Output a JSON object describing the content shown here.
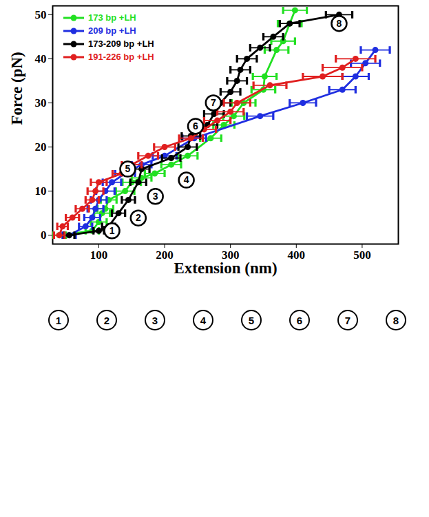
{
  "chart_data": {
    "type": "line",
    "marker": "circle",
    "legend": "upper left",
    "x_label": "Extension (nm)",
    "y_label": "Force (pN)",
    "xlim": [
      30,
      555
    ],
    "xticks": [
      100,
      200,
      300,
      400,
      500
    ],
    "ylim": [
      -2,
      52
    ],
    "yticks": [
      0,
      10,
      20,
      30,
      40,
      50
    ],
    "series": [
      {
        "name": "173 bp +LH",
        "color": "#22e022",
        "x": [
          40,
          90,
          100,
          105,
          110,
          115,
          140,
          150,
          165,
          185,
          210,
          235,
          270,
          290,
          305,
          320,
          350,
          352,
          370,
          380,
          390,
          398
        ],
        "values": [
          0,
          1,
          3,
          5,
          6,
          8,
          10,
          12,
          13,
          14,
          16,
          18,
          22,
          25,
          27,
          30,
          33,
          36,
          42,
          44,
          48,
          51
        ],
        "x_errors": [
          10,
          10,
          12,
          12,
          12,
          12,
          14,
          14,
          15,
          15,
          15,
          15,
          16,
          16,
          16,
          18,
          18,
          18,
          18,
          18,
          18,
          18
        ]
      },
      {
        "name": "209 bp +LH",
        "color": "#1f2ee0",
        "x": [
          55,
          80,
          90,
          95,
          100,
          110,
          120,
          140,
          165,
          200,
          245,
          345,
          410,
          470,
          490,
          505,
          520
        ],
        "values": [
          0,
          2,
          4,
          6,
          8,
          10,
          12,
          14,
          16,
          18,
          22,
          27,
          30,
          33,
          36,
          39,
          42
        ],
        "x_errors": [
          10,
          10,
          12,
          12,
          12,
          14,
          14,
          15,
          15,
          18,
          18,
          20,
          20,
          20,
          20,
          22,
          22
        ]
      },
      {
        "name": "173-209 bp +LH",
        "color": "#000000",
        "x": [
          55,
          100,
          115,
          130,
          145,
          160,
          165,
          210,
          235,
          240,
          265,
          275,
          285,
          300,
          310,
          315,
          325,
          345,
          365,
          390,
          465
        ],
        "values": [
          0,
          1,
          2,
          5,
          8,
          12,
          15,
          17.5,
          20,
          22.5,
          25,
          27.5,
          30,
          32.5,
          35,
          37.5,
          40,
          42.5,
          45,
          48,
          50
        ],
        "x_errors": [
          8,
          8,
          10,
          10,
          10,
          12,
          12,
          14,
          14,
          14,
          15,
          15,
          15,
          15,
          15,
          15,
          15,
          15,
          15,
          15,
          20
        ]
      },
      {
        "name": "191-226 bp +LH",
        "color": "#e01f1f",
        "x": [
          40,
          45,
          60,
          75,
          90,
          95,
          100,
          135,
          150,
          175,
          200,
          240,
          260,
          280,
          300,
          310,
          360,
          440,
          470,
          490
        ],
        "values": [
          0,
          2,
          4,
          6,
          8,
          10,
          12,
          14,
          16,
          18,
          20,
          22,
          24,
          26,
          28,
          30,
          34,
          36,
          38,
          40
        ],
        "x_errors": [
          8,
          8,
          10,
          10,
          10,
          12,
          12,
          14,
          15,
          15,
          16,
          18,
          18,
          20,
          20,
          20,
          25,
          30,
          30,
          30
        ]
      }
    ],
    "annotations": [
      {
        "text": "1",
        "x": 120,
        "y": 1
      },
      {
        "text": "2",
        "x": 160,
        "y": 3.9
      },
      {
        "text": "3",
        "x": 186,
        "y": 8.8
      },
      {
        "text": "4",
        "x": 233,
        "y": 12.5
      },
      {
        "text": "5",
        "x": 144,
        "y": 15
      },
      {
        "text": "6",
        "x": 247,
        "y": 24.7
      },
      {
        "text": "7",
        "x": 274,
        "y": 30
      },
      {
        "text": "8",
        "x": 465,
        "y": 48
      }
    ],
    "panel_labels": [
      "1",
      "2",
      "3",
      "4",
      "5",
      "6",
      "7",
      "8"
    ]
  }
}
